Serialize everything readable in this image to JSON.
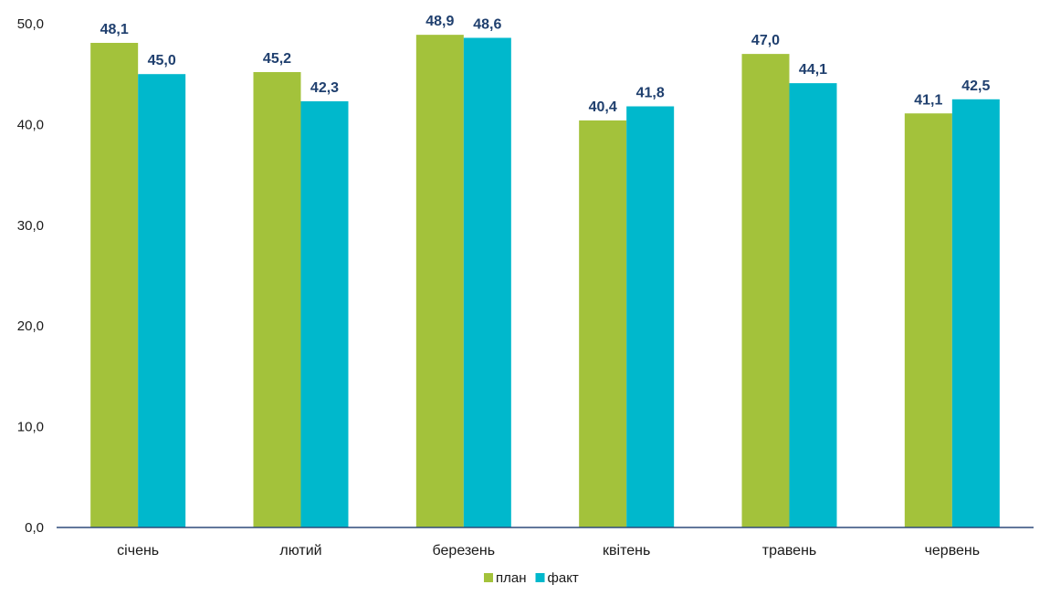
{
  "chart_data": {
    "type": "bar",
    "categories": [
      "січень",
      "лютий",
      "березень",
      "квітень",
      "травень",
      "червень"
    ],
    "series": [
      {
        "name": "план",
        "color": "#a3c23b",
        "values": [
          48.1,
          45.2,
          48.9,
          40.4,
          47.0,
          41.1
        ]
      },
      {
        "name": "факт",
        "color": "#00b8cc",
        "values": [
          45.0,
          42.3,
          48.6,
          41.8,
          44.1,
          42.5
        ]
      }
    ],
    "ylim": [
      0,
      50
    ],
    "yticks": [
      0,
      10,
      20,
      30,
      40,
      50
    ],
    "ytick_labels": [
      "0,0",
      "10,0",
      "20,0",
      "30,0",
      "40,0",
      "50,0"
    ],
    "data_labels": [
      [
        "48,1",
        "45,2",
        "48,9",
        "40,4",
        "47,0",
        "41,1"
      ],
      [
        "45,0",
        "42,3",
        "48,6",
        "41,8",
        "44,1",
        "42,5"
      ]
    ],
    "grid": false,
    "legend_position": "bottom",
    "title": "",
    "xlabel": "",
    "ylabel": "",
    "axis_color": "#2e4a7a"
  }
}
